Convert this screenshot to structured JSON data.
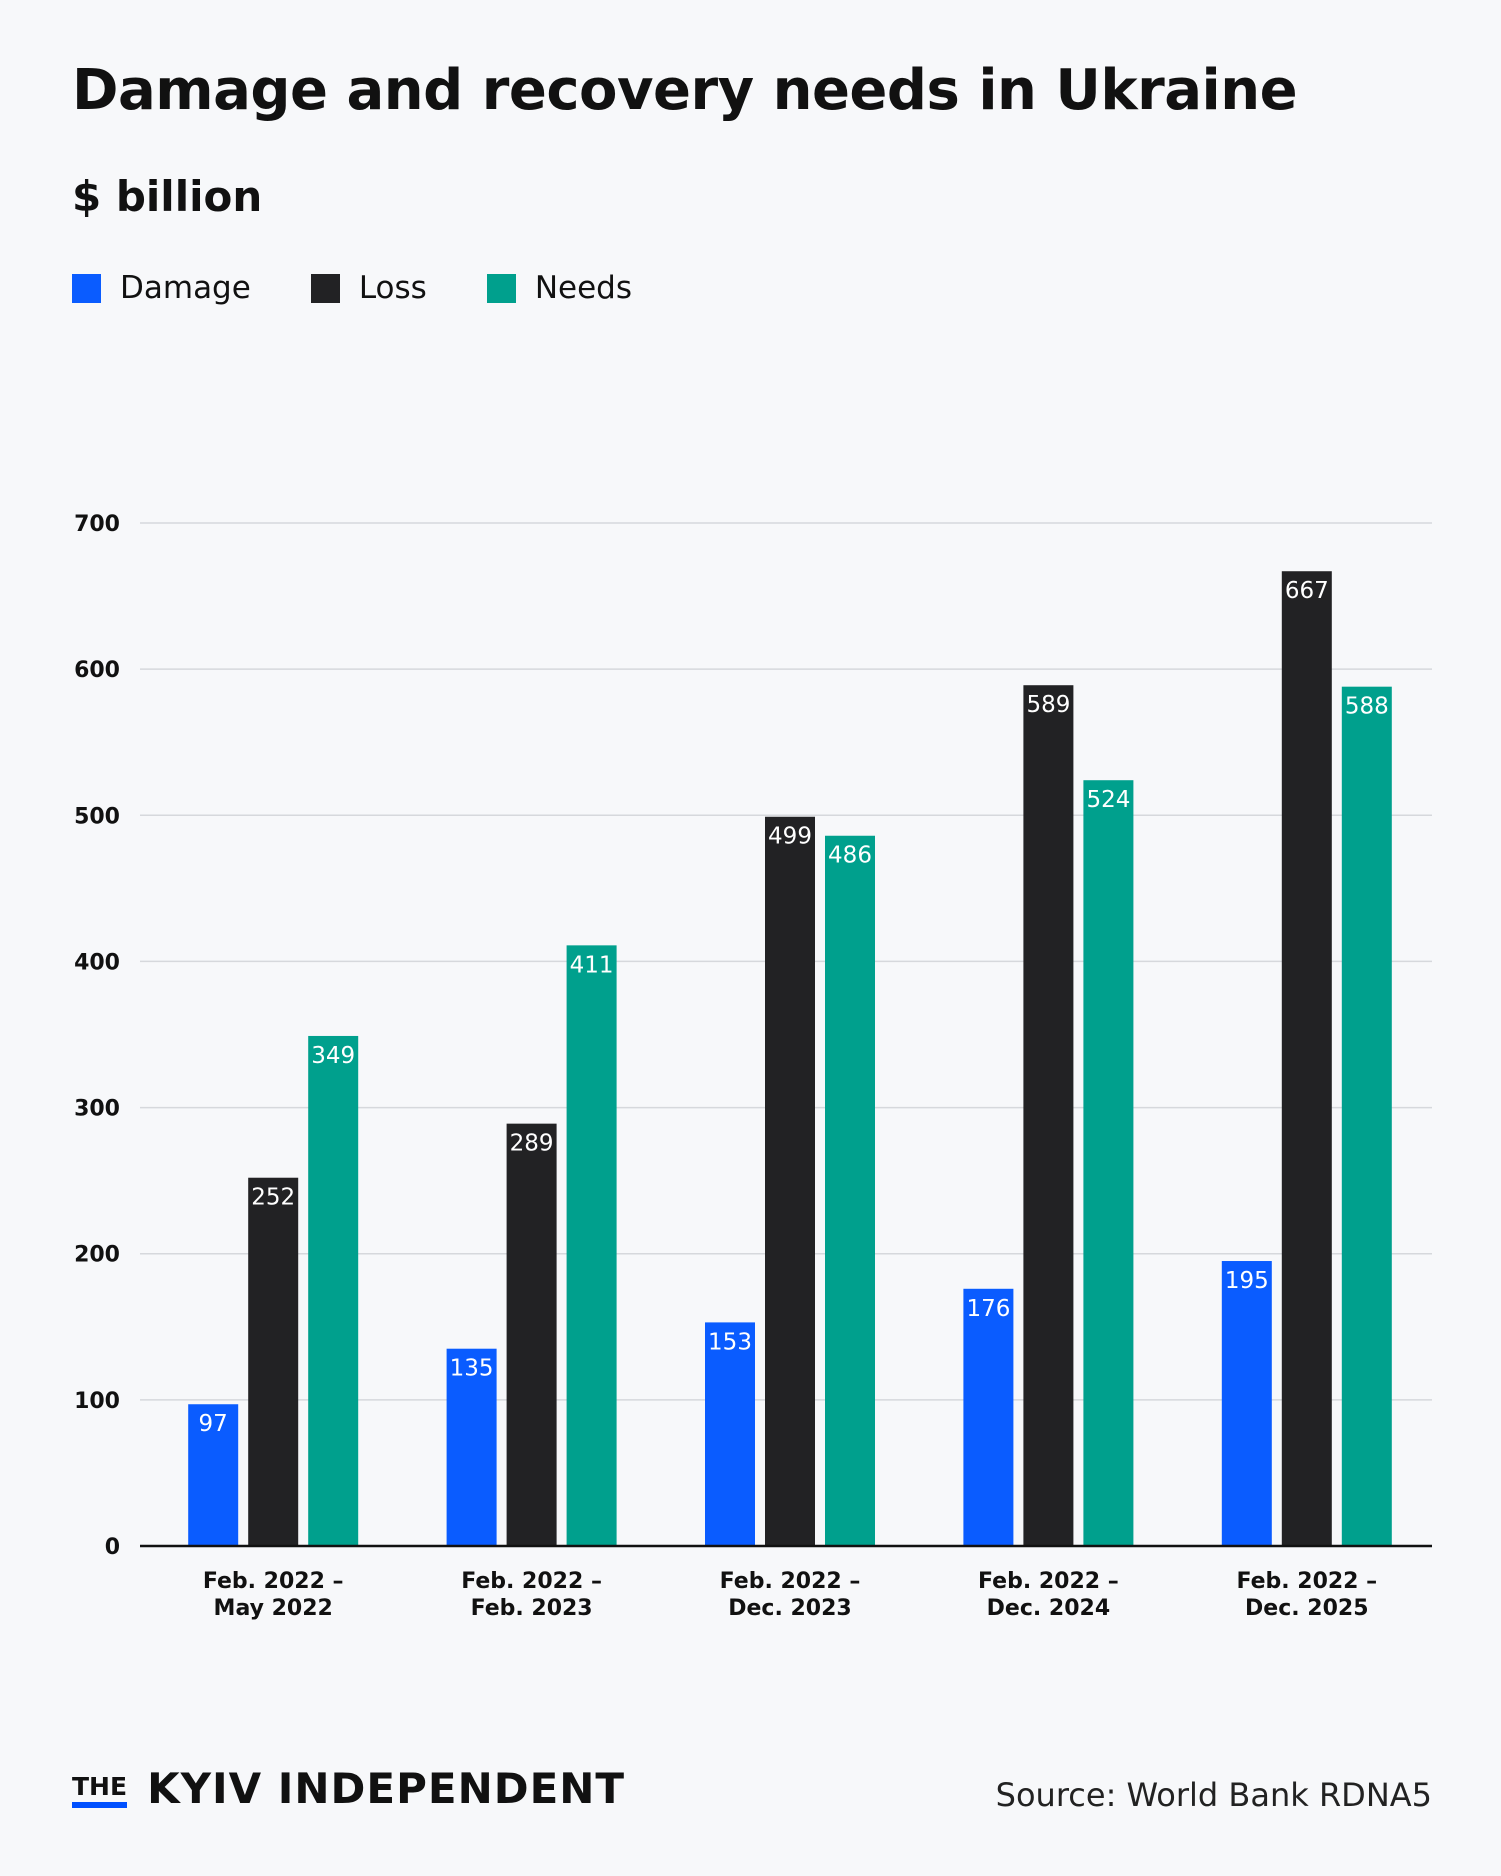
{
  "title": "Damage and recovery needs in Ukraine",
  "unit_label": "$ billion",
  "legend": [
    {
      "label": "Damage",
      "color": "#0a5cff"
    },
    {
      "label": "Loss",
      "color": "#222224"
    },
    {
      "label": "Needs",
      "color": "#00a08d"
    }
  ],
  "chart_data": {
    "type": "bar",
    "categories": [
      [
        "Feb. 2022 –",
        "May 2022"
      ],
      [
        "Feb. 2022 –",
        "Feb. 2023"
      ],
      [
        "Feb. 2022 –",
        "Dec. 2023"
      ],
      [
        "Feb. 2022 –",
        "Dec. 2024"
      ],
      [
        "Feb. 2022 –",
        "Dec. 2025"
      ]
    ],
    "series": [
      {
        "name": "Damage",
        "color": "#0a5cff",
        "values": [
          97,
          135,
          153,
          176,
          195
        ]
      },
      {
        "name": "Loss",
        "color": "#222224",
        "values": [
          252,
          289,
          499,
          589,
          667
        ]
      },
      {
        "name": "Needs",
        "color": "#00a08d",
        "values": [
          349,
          411,
          486,
          524,
          588
        ]
      }
    ],
    "ylim": [
      0,
      700
    ],
    "yticks": [
      0,
      100,
      200,
      300,
      400,
      500,
      600,
      700
    ],
    "grid": true,
    "legend_position": "top-left"
  },
  "footer": {
    "logo_the": "THE",
    "logo_name": "KYIV INDEPENDENT",
    "source": "Source: World Bank RDNA5"
  }
}
